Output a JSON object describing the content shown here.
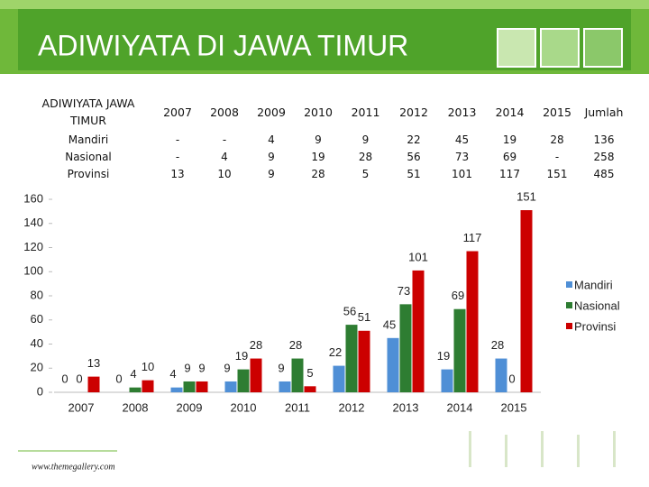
{
  "title": "ADIWIYATA DI JAWA TIMUR",
  "table": {
    "header": [
      "ADIWIYATA JAWA TIMUR",
      "2007",
      "2008",
      "2009",
      "2010",
      "2011",
      "2012",
      "2013",
      "2014",
      "2015",
      "Jumlah"
    ],
    "rows": [
      [
        "Mandiri",
        "-",
        "-",
        "4",
        "9",
        "9",
        "22",
        "45",
        "19",
        "28",
        "136"
      ],
      [
        "Nasional",
        "-",
        "4",
        "9",
        "19",
        "28",
        "56",
        "73",
        "69",
        "-",
        "258"
      ],
      [
        "Provinsi",
        "13",
        "10",
        "9",
        "28",
        "5",
        "51",
        "101",
        "117",
        "151",
        "485"
      ]
    ]
  },
  "chart_data": {
    "type": "bar",
    "categories": [
      "2007",
      "2008",
      "2009",
      "2010",
      "2011",
      "2012",
      "2013",
      "2014",
      "2015"
    ],
    "series": [
      {
        "name": "Mandiri",
        "color": "#4f8fd6",
        "values": [
          0,
          0,
          4,
          9,
          9,
          22,
          45,
          19,
          28
        ]
      },
      {
        "name": "Nasional",
        "color": "#2e7d32",
        "values": [
          0,
          4,
          9,
          19,
          28,
          56,
          73,
          69,
          0
        ]
      },
      {
        "name": "Provinsi",
        "color": "#cc0000",
        "values": [
          13,
          10,
          9,
          28,
          5,
          51,
          101,
          117,
          151
        ]
      }
    ],
    "ylim": [
      0,
      160
    ],
    "yticks": [
      0,
      20,
      40,
      60,
      80,
      100,
      120,
      140,
      160
    ],
    "legend": "right",
    "data_labels": true
  },
  "footer": "www.themegallery.com"
}
